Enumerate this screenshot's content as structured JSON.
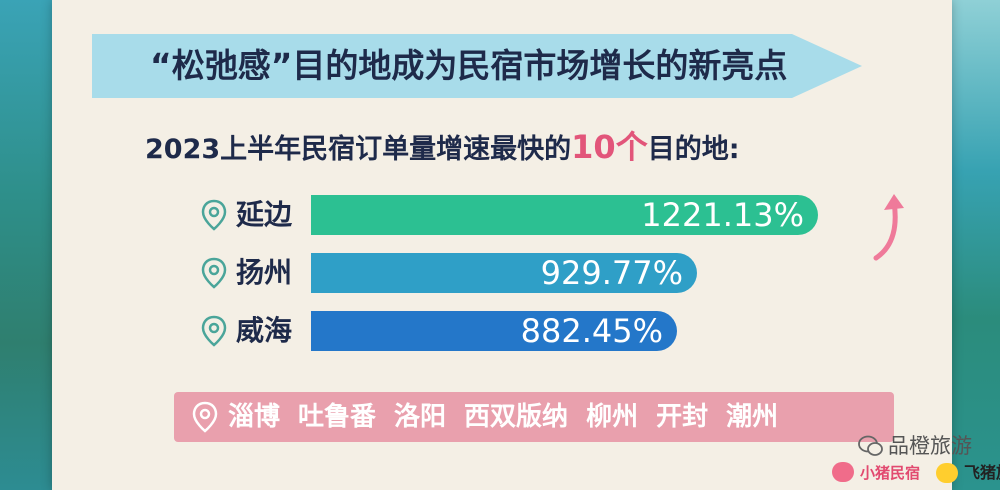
{
  "header": {
    "title": "“松弛感”目的地成为民宿市场增长的新亮点",
    "subtitle_prefix": "2023上半年民宿订单量增速最快的",
    "subtitle_highlight": "10个",
    "subtitle_suffix": "目的地:"
  },
  "chart_data": {
    "type": "bar",
    "orientation": "horizontal",
    "categories": [
      "延边",
      "扬州",
      "威海"
    ],
    "values": [
      1221.13,
      929.77,
      882.45
    ],
    "value_labels": [
      "1221.13%",
      "929.77%",
      "882.45%"
    ],
    "bar_colors": [
      "#2cc092",
      "#2f9fc7",
      "#2477c9"
    ],
    "xlim": [
      0,
      1400
    ]
  },
  "other_destinations": [
    "淄博",
    "吐鲁番",
    "洛阳",
    "西双版纳",
    "柳州",
    "开封",
    "潮州"
  ],
  "watermark": "品橙旅游",
  "logos": {
    "xiaozhu": "小猪民宿",
    "fliggy": "飞猪旅行"
  },
  "colors": {
    "title_banner": "#a8dcea",
    "text_dark": "#1e2a4a",
    "highlight": "#e2557a",
    "others_band": "#e9a0ad",
    "arrow": "#ef7a9a",
    "pin": "#4aa59a"
  },
  "icons": {
    "pin": "location-pin-icon",
    "arrow": "up-arrow-icon"
  }
}
